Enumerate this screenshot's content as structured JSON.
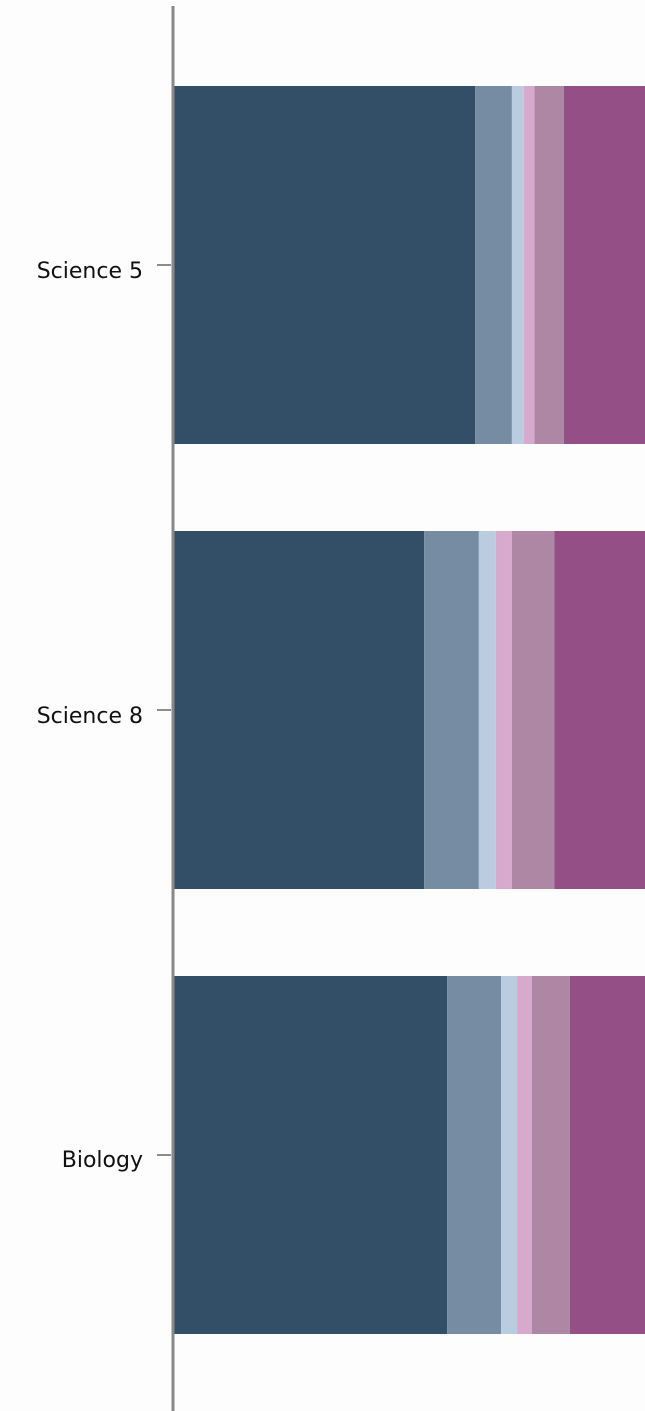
{
  "chart_data": {
    "type": "bar",
    "orientation": "horizontal",
    "stacked": true,
    "title": "",
    "xlabel": "",
    "ylabel": "",
    "categories": [
      "Science 5",
      "Science 8",
      "Biology"
    ],
    "series": [
      {
        "color": "#334f67",
        "values": [
          64.0,
          53.2,
          58.1
        ]
      },
      {
        "color": "#768ca2",
        "values": [
          7.8,
          11.6,
          11.4
        ]
      },
      {
        "color": "#bacce0",
        "values": [
          2.5,
          3.6,
          3.4
        ]
      },
      {
        "color": "#d7a9cc",
        "values": [
          2.3,
          3.4,
          3.1
        ]
      },
      {
        "color": "#ae87a5",
        "values": [
          6.2,
          9.0,
          8.1
        ]
      },
      {
        "color": "#944f86",
        "values": [
          17.2,
          19.2,
          15.9
        ]
      }
    ],
    "xlim": [
      0,
      100
    ],
    "grid": false,
    "legend": "none"
  }
}
